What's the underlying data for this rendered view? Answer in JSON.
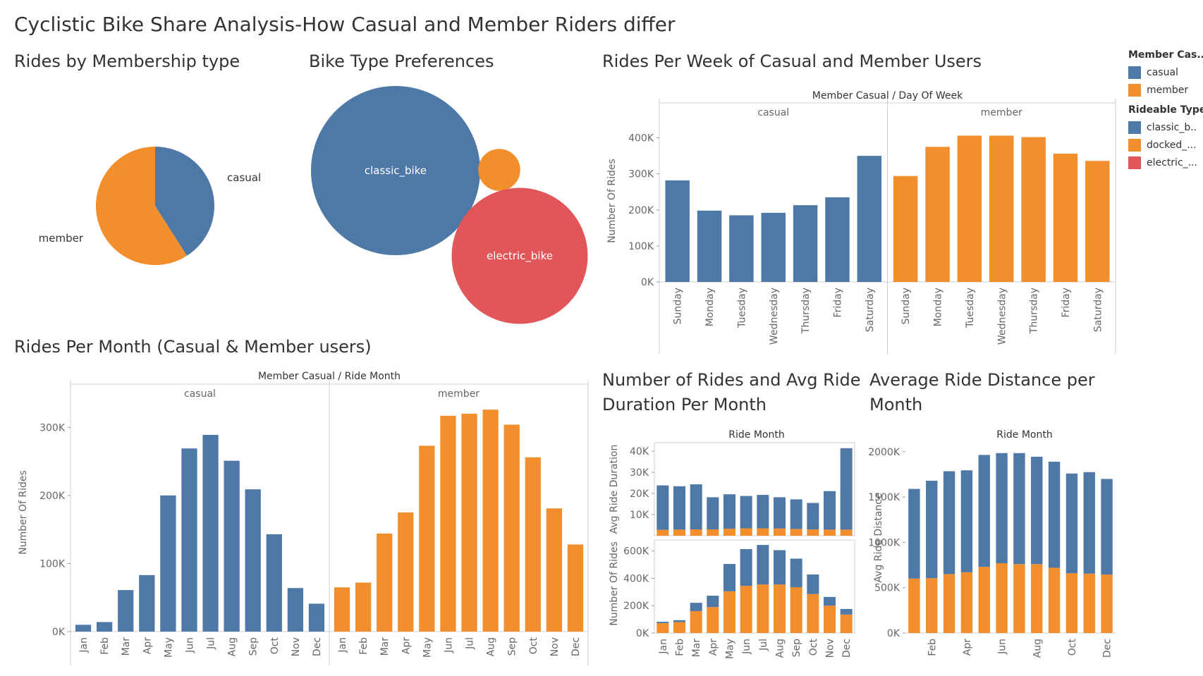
{
  "page_title": "Cyclistic Bike Share Analysis-How Casual and Member Riders differ",
  "colors": {
    "casual": "#4e79a7",
    "member": "#f28e2b",
    "electric": "#e15759",
    "grid": "#cfcfcf",
    "text": "#555555"
  },
  "legend": {
    "member_title": "Member Cas..",
    "member_items": [
      {
        "label": "casual",
        "color": "#4e79a7"
      },
      {
        "label": "member",
        "color": "#f28e2b"
      }
    ],
    "rideable_title": "Rideable Type",
    "rideable_items": [
      {
        "label": "classic_b..",
        "color": "#4e79a7"
      },
      {
        "label": "docked_...",
        "color": "#f28e2b"
      },
      {
        "label": "electric_...",
        "color": "#e15759"
      }
    ]
  },
  "chart_data": [
    {
      "id": "pie",
      "type": "pie",
      "title": "Rides by Membership type",
      "slices": [
        {
          "label": "casual",
          "value": 41,
          "color": "#4e79a7"
        },
        {
          "label": "member",
          "value": 59,
          "color": "#f28e2b"
        }
      ]
    },
    {
      "id": "bubble",
      "type": "bubble",
      "title": "Bike Type Preferences",
      "bubbles": [
        {
          "label": "classic_bike",
          "value": 3250000,
          "color": "#4e79a7"
        },
        {
          "label": "",
          "value": 200000,
          "color": "#f28e2b"
        },
        {
          "label": "electric_bike",
          "value": 2100000,
          "color": "#e15759"
        }
      ]
    },
    {
      "id": "weekly",
      "type": "bar",
      "title": "Rides Per Week of Casual and Member Users",
      "header": "Member Casual  /  Day Of Week",
      "ylabel": "Number Of Rides",
      "ylim": [
        0,
        450000
      ],
      "yticks": [
        {
          "v": 0,
          "label": "0K"
        },
        {
          "v": 100000,
          "label": "100K"
        },
        {
          "v": 200000,
          "label": "200K"
        },
        {
          "v": 300000,
          "label": "300K"
        },
        {
          "v": 400000,
          "label": "400K"
        }
      ],
      "categories": [
        "Sunday",
        "Monday",
        "Tuesday",
        "Wednesday",
        "Thursday",
        "Friday",
        "Saturday"
      ],
      "series": [
        {
          "name": "casual",
          "color": "#4e79a7",
          "values": [
            282000,
            198000,
            185000,
            192000,
            213000,
            235000,
            350000
          ]
        },
        {
          "name": "member",
          "color": "#f28e2b",
          "values": [
            294000,
            375000,
            406000,
            406000,
            402000,
            356000,
            336000
          ]
        }
      ]
    },
    {
      "id": "monthly",
      "type": "bar",
      "title": "Rides Per Month (Casual & Member users)",
      "header": "Member Casual  /  Ride Month",
      "ylabel": "Number Of Rides",
      "ylim": [
        0,
        350000
      ],
      "yticks": [
        {
          "v": 0,
          "label": "0K"
        },
        {
          "v": 100000,
          "label": "100K"
        },
        {
          "v": 200000,
          "label": "200K"
        },
        {
          "v": 300000,
          "label": "300K"
        }
      ],
      "categories": [
        "Jan",
        "Feb",
        "Mar",
        "Apr",
        "May",
        "Jun",
        "Jul",
        "Aug",
        "Sep",
        "Oct",
        "Nov",
        "Dec"
      ],
      "series": [
        {
          "name": "casual",
          "color": "#4e79a7",
          "values": [
            10000,
            14000,
            61000,
            83000,
            200000,
            269000,
            289000,
            251000,
            209000,
            143000,
            64000,
            41000
          ]
        },
        {
          "name": "member",
          "color": "#f28e2b",
          "values": [
            65000,
            72000,
            144000,
            175000,
            273000,
            317000,
            320000,
            326000,
            304000,
            256000,
            181000,
            128000
          ]
        }
      ]
    },
    {
      "id": "duration",
      "type": "stacked_bar",
      "title": "Number of Rides and Avg Ride Duration Per Month",
      "header": "Ride Month",
      "categories": [
        "Jan",
        "Feb",
        "Mar",
        "Apr",
        "May",
        "Jun",
        "Jul",
        "Aug",
        "Sep",
        "Oct",
        "Nov",
        "Dec"
      ],
      "panels": [
        {
          "ylabel": "Avg Ride Duration",
          "ylim": [
            0,
            44000
          ],
          "yticks": [
            {
              "v": 10000,
              "label": "10K"
            },
            {
              "v": 20000,
              "label": "20K"
            },
            {
              "v": 30000,
              "label": "30K"
            },
            {
              "v": 40000,
              "label": "40K"
            }
          ],
          "series": [
            {
              "name": "member",
              "color": "#f28e2b",
              "values": [
                2800,
                2900,
                3000,
                3000,
                3300,
                3500,
                3500,
                3400,
                3200,
                3000,
                2900,
                2900
              ]
            },
            {
              "name": "casual",
              "color": "#4e79a7",
              "values": [
                21000,
                20500,
                21300,
                15200,
                16300,
                15300,
                15800,
                14800,
                14000,
                12500,
                18200,
                38500
              ]
            }
          ]
        },
        {
          "ylabel": "Number Of Rides",
          "ylim": [
            0,
            660000
          ],
          "yticks": [
            {
              "v": 0,
              "label": "0K"
            },
            {
              "v": 200000,
              "label": "200K"
            },
            {
              "v": 400000,
              "label": "400K"
            },
            {
              "v": 600000,
              "label": "600K"
            }
          ],
          "series": [
            {
              "name": "member",
              "color": "#f28e2b",
              "values": [
                72000,
                80000,
                160000,
                190000,
                305000,
                345000,
                355000,
                355000,
                335000,
                285000,
                200000,
                135000
              ]
            },
            {
              "name": "casual",
              "color": "#4e79a7",
              "values": [
                10000,
                14000,
                61000,
                83000,
                200000,
                269000,
                289000,
                251000,
                209000,
                143000,
                64000,
                41000
              ]
            }
          ]
        }
      ]
    },
    {
      "id": "distance",
      "type": "stacked_bar",
      "title": "Average Ride Distance per Month",
      "header": "Ride Month",
      "ylabel": "Avg Ride Distance",
      "ylim": [
        0,
        2100000
      ],
      "yticks": [
        {
          "v": 0,
          "label": "0K"
        },
        {
          "v": 500000,
          "label": "500K"
        },
        {
          "v": 1000000,
          "label": "1000K"
        },
        {
          "v": 1500000,
          "label": "1500K"
        },
        {
          "v": 2000000,
          "label": "2000K"
        }
      ],
      "categories": [
        "Jan",
        "Feb",
        "Mar",
        "Apr",
        "May",
        "Jun",
        "Jul",
        "Aug",
        "Sep",
        "Oct",
        "Nov",
        "Dec"
      ],
      "xtick_labels": [
        "",
        "Feb",
        "",
        "Apr",
        "",
        "Jun",
        "",
        "Aug",
        "",
        "Oct",
        "",
        "Dec"
      ],
      "series": [
        {
          "name": "member",
          "color": "#f28e2b",
          "values": [
            600000,
            605000,
            650000,
            670000,
            730000,
            770000,
            760000,
            760000,
            720000,
            660000,
            655000,
            645000
          ]
        },
        {
          "name": "casual",
          "color": "#4e79a7",
          "values": [
            990000,
            1075000,
            1135000,
            1125000,
            1235000,
            1215000,
            1225000,
            1185000,
            1170000,
            1100000,
            1120000,
            1055000
          ]
        }
      ]
    }
  ]
}
